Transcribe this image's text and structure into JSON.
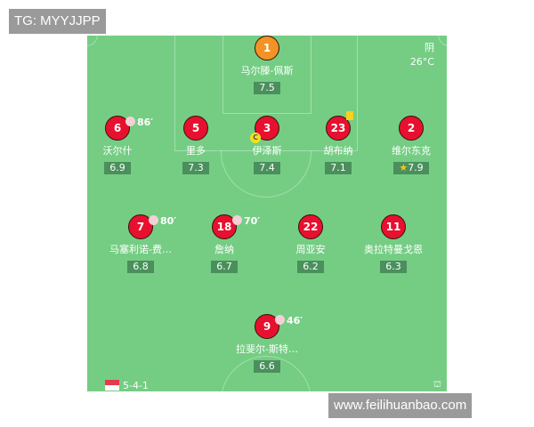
{
  "watermarks": {
    "top": "TG: MYYJJPP",
    "bottom": "www.feilihuanbao.com"
  },
  "weather": {
    "condition": "阴",
    "temperature": "26°C"
  },
  "formation": "5-4-1",
  "colors": {
    "pitch": "#74cd83",
    "player": "#e8102f",
    "goalkeeper": "#f39325",
    "rating_bg": "#4a8f5c"
  },
  "players": [
    {
      "number": "1",
      "name": "马尔滕-佩斯",
      "rating": "7.5",
      "role": "goalkeeper"
    },
    {
      "number": "6",
      "name": "沃尔什",
      "rating": "6.9",
      "sub": "86′"
    },
    {
      "number": "5",
      "name": "里多",
      "rating": "7.3"
    },
    {
      "number": "3",
      "name": "伊泽斯",
      "rating": "7.4",
      "captain": "C"
    },
    {
      "number": "23",
      "name": "胡布纳",
      "rating": "7.1",
      "card": "yellow"
    },
    {
      "number": "2",
      "name": "维尔东克",
      "rating": "7.9",
      "best": "star-icon"
    },
    {
      "number": "7",
      "name": "马塞利诺-费…",
      "rating": "6.8",
      "sub": "80′"
    },
    {
      "number": "18",
      "name": "詹纳",
      "rating": "6.7",
      "sub": "70′"
    },
    {
      "number": "22",
      "name": "周亚安",
      "rating": "6.2"
    },
    {
      "number": "11",
      "name": "奥拉特曼戈恩",
      "rating": "6.3"
    },
    {
      "number": "9",
      "name": "拉斐尔-斯特…",
      "rating": "6.6",
      "sub": "46′"
    }
  ]
}
